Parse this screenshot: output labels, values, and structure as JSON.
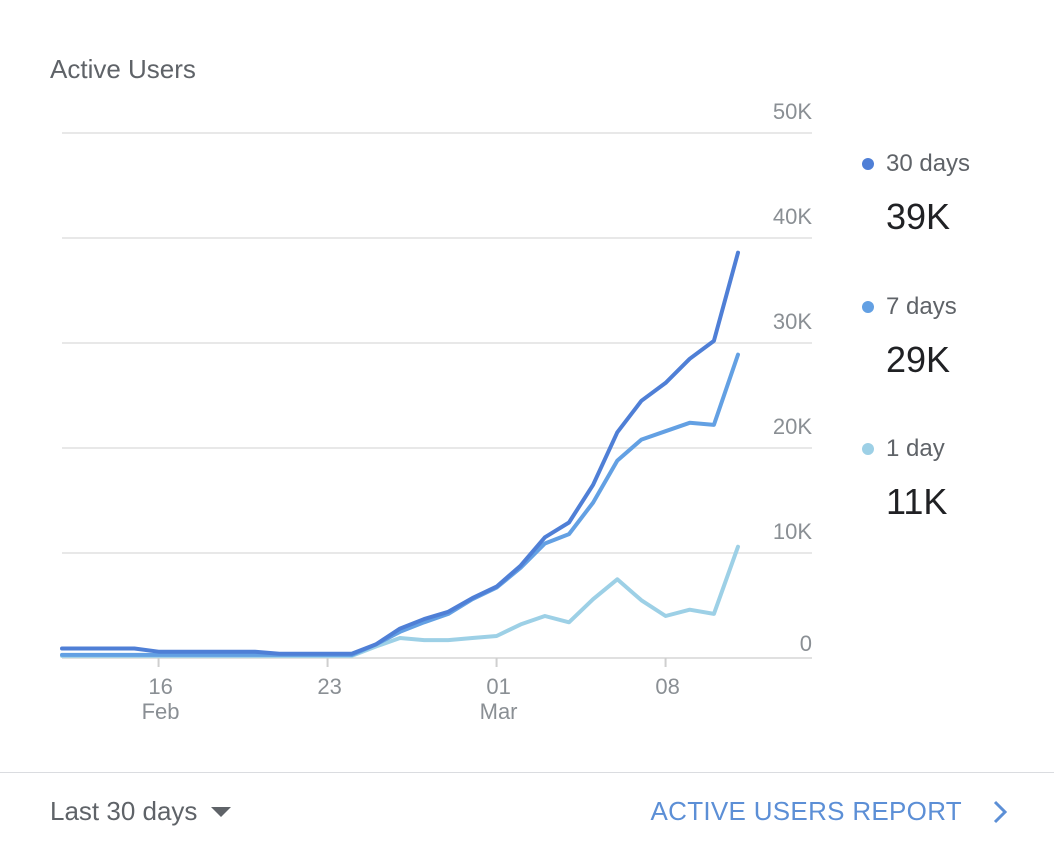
{
  "card": {
    "title": "Active Users"
  },
  "footer": {
    "range_label": "Last 30 days",
    "report_link": "ACTIVE USERS REPORT"
  },
  "legend": [
    {
      "label": "30 days",
      "value": "39K",
      "color": "#4f7fd6"
    },
    {
      "label": "7 days",
      "value": "29K",
      "color": "#63a0e3"
    },
    {
      "label": "1 day",
      "value": "11K",
      "color": "#9dd0e6"
    }
  ],
  "chart_data": {
    "type": "line",
    "ylim": [
      0,
      50000
    ],
    "y_ticks": [
      {
        "value": 0,
        "label": "0"
      },
      {
        "value": 10000,
        "label": "10K"
      },
      {
        "value": 20000,
        "label": "20K"
      },
      {
        "value": 30000,
        "label": "30K"
      },
      {
        "value": 40000,
        "label": "40K"
      },
      {
        "value": 50000,
        "label": "50K"
      }
    ],
    "grid": true,
    "x": [
      "Feb 12",
      "Feb 13",
      "Feb 14",
      "Feb 15",
      "Feb 16",
      "Feb 17",
      "Feb 18",
      "Feb 19",
      "Feb 20",
      "Feb 21",
      "Feb 22",
      "Feb 23",
      "Feb 24",
      "Feb 25",
      "Feb 26",
      "Feb 27",
      "Feb 28",
      "Feb 29",
      "Mar 01",
      "Mar 02",
      "Mar 03",
      "Mar 04",
      "Mar 05",
      "Mar 06",
      "Mar 07",
      "Mar 08",
      "Mar 09",
      "Mar 10",
      "Mar 11"
    ],
    "x_ticks": [
      {
        "index": 4,
        "day": "16",
        "month": "Feb"
      },
      {
        "index": 11,
        "day": "23",
        "month": ""
      },
      {
        "index": 18,
        "day": "01",
        "month": "Mar"
      },
      {
        "index": 25,
        "day": "08",
        "month": ""
      }
    ],
    "series": [
      {
        "name": "30 days",
        "color": "#4f7fd6",
        "values": [
          900,
          900,
          900,
          900,
          600,
          600,
          600,
          600,
          600,
          400,
          400,
          400,
          400,
          1300,
          2800,
          3700,
          4400,
          5700,
          6800,
          8800,
          11500,
          12900,
          16500,
          21500,
          24500,
          26200,
          28500,
          30200,
          38600
        ]
      },
      {
        "name": "7 days",
        "color": "#63a0e3",
        "values": [
          300,
          300,
          300,
          300,
          300,
          300,
          300,
          300,
          300,
          300,
          300,
          300,
          300,
          1300,
          2500,
          3400,
          4200,
          5600,
          6700,
          8600,
          10900,
          11800,
          14800,
          18800,
          20800,
          21600,
          22400,
          22200,
          28900
        ]
      },
      {
        "name": "1 day",
        "color": "#9dd0e6",
        "values": [
          200,
          200,
          200,
          200,
          200,
          200,
          200,
          200,
          200,
          200,
          200,
          200,
          200,
          1100,
          1900,
          1700,
          1700,
          1900,
          2100,
          3200,
          4000,
          3400,
          5600,
          7500,
          5500,
          4000,
          4600,
          4200,
          10600
        ]
      }
    ]
  }
}
